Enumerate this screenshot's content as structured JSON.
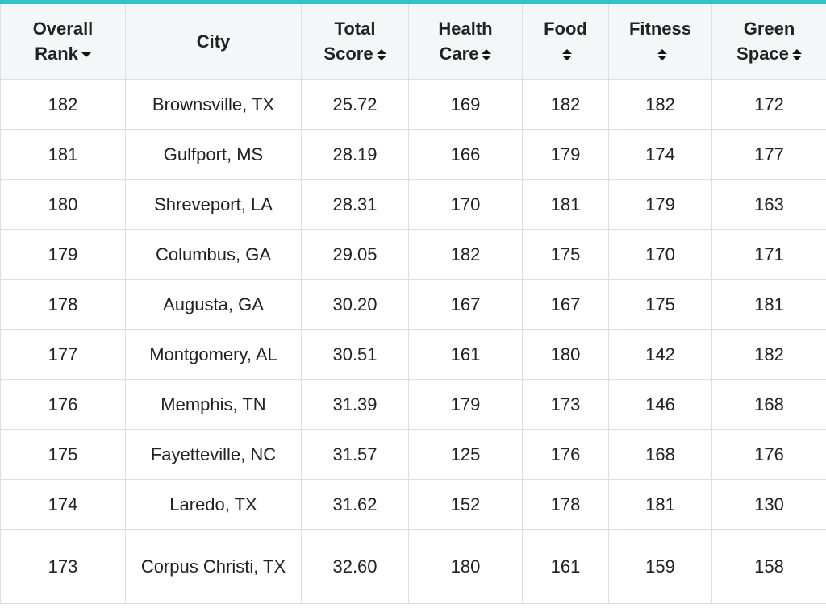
{
  "header": {
    "overall_rank": [
      "Overall",
      "Rank"
    ],
    "city": "City",
    "total_score": [
      "Total",
      "Score"
    ],
    "health_care": [
      "Health",
      "Care"
    ],
    "food": "Food",
    "fitness": "Fitness",
    "green_space": [
      "Green",
      "Space"
    ]
  },
  "colors": {
    "accent_top_bar": "#2ec7c9",
    "header_bg": "#f5f6f8",
    "border": "#dcdfe3"
  },
  "rows": [
    {
      "rank": "182",
      "city": "Brownsville, TX",
      "total": "25.72",
      "health": "169",
      "food": "182",
      "fitness": "182",
      "green": "172"
    },
    {
      "rank": "181",
      "city": "Gulfport, MS",
      "total": "28.19",
      "health": "166",
      "food": "179",
      "fitness": "174",
      "green": "177"
    },
    {
      "rank": "180",
      "city": "Shreveport, LA",
      "total": "28.31",
      "health": "170",
      "food": "181",
      "fitness": "179",
      "green": "163"
    },
    {
      "rank": "179",
      "city": "Columbus, GA",
      "total": "29.05",
      "health": "182",
      "food": "175",
      "fitness": "170",
      "green": "171"
    },
    {
      "rank": "178",
      "city": "Augusta, GA",
      "total": "30.20",
      "health": "167",
      "food": "167",
      "fitness": "175",
      "green": "181"
    },
    {
      "rank": "177",
      "city": "Montgomery, AL",
      "total": "30.51",
      "health": "161",
      "food": "180",
      "fitness": "142",
      "green": "182"
    },
    {
      "rank": "176",
      "city": "Memphis, TN",
      "total": "31.39",
      "health": "179",
      "food": "173",
      "fitness": "146",
      "green": "168"
    },
    {
      "rank": "175",
      "city": "Fayetteville, NC",
      "total": "31.57",
      "health": "125",
      "food": "176",
      "fitness": "168",
      "green": "176"
    },
    {
      "rank": "174",
      "city": "Laredo, TX",
      "total": "31.62",
      "health": "152",
      "food": "178",
      "fitness": "181",
      "green": "130"
    },
    {
      "rank": "173",
      "city": "Corpus Christi, TX",
      "total": "32.60",
      "health": "180",
      "food": "161",
      "fitness": "159",
      "green": "158"
    }
  ]
}
